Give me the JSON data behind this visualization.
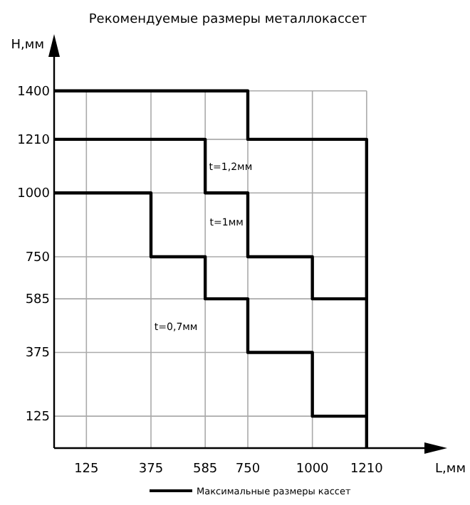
{
  "chart_data": {
    "type": "line",
    "title": "Рекомендуемые размеры металлокассет",
    "xlabel": "L,мм",
    "ylabel": "H,мм",
    "xlim": [
      0,
      1500
    ],
    "ylim": [
      0,
      1600
    ],
    "xticks": [
      125,
      375,
      585,
      750,
      1000,
      1210
    ],
    "yticks": [
      125,
      375,
      585,
      750,
      1000,
      1210,
      1400
    ],
    "grid": true,
    "legend": "bottom",
    "line_style": "solid",
    "series": [
      {
        "name": "Максимальные размеры кассет",
        "color": "#000000",
        "x": [
          0,
          750,
          750,
          1210,
          1210
        ],
        "values": [
          1400,
          1400,
          1210,
          1210,
          0
        ]
      },
      {
        "color": "#000000",
        "x": [
          0,
          585,
          585,
          750,
          750,
          1000,
          1000,
          1210
        ],
        "values": [
          1210,
          1210,
          1000,
          1000,
          750,
          750,
          585,
          585
        ]
      },
      {
        "color": "#000000",
        "x": [
          0,
          375,
          375,
          585,
          585,
          750,
          750,
          1000,
          1000,
          1210
        ],
        "values": [
          1000,
          1000,
          750,
          750,
          585,
          585,
          375,
          375,
          125,
          125
        ]
      }
    ],
    "annotations": [
      "t=1,2мм",
      "t=1мм",
      "t=0,7мм"
    ]
  }
}
